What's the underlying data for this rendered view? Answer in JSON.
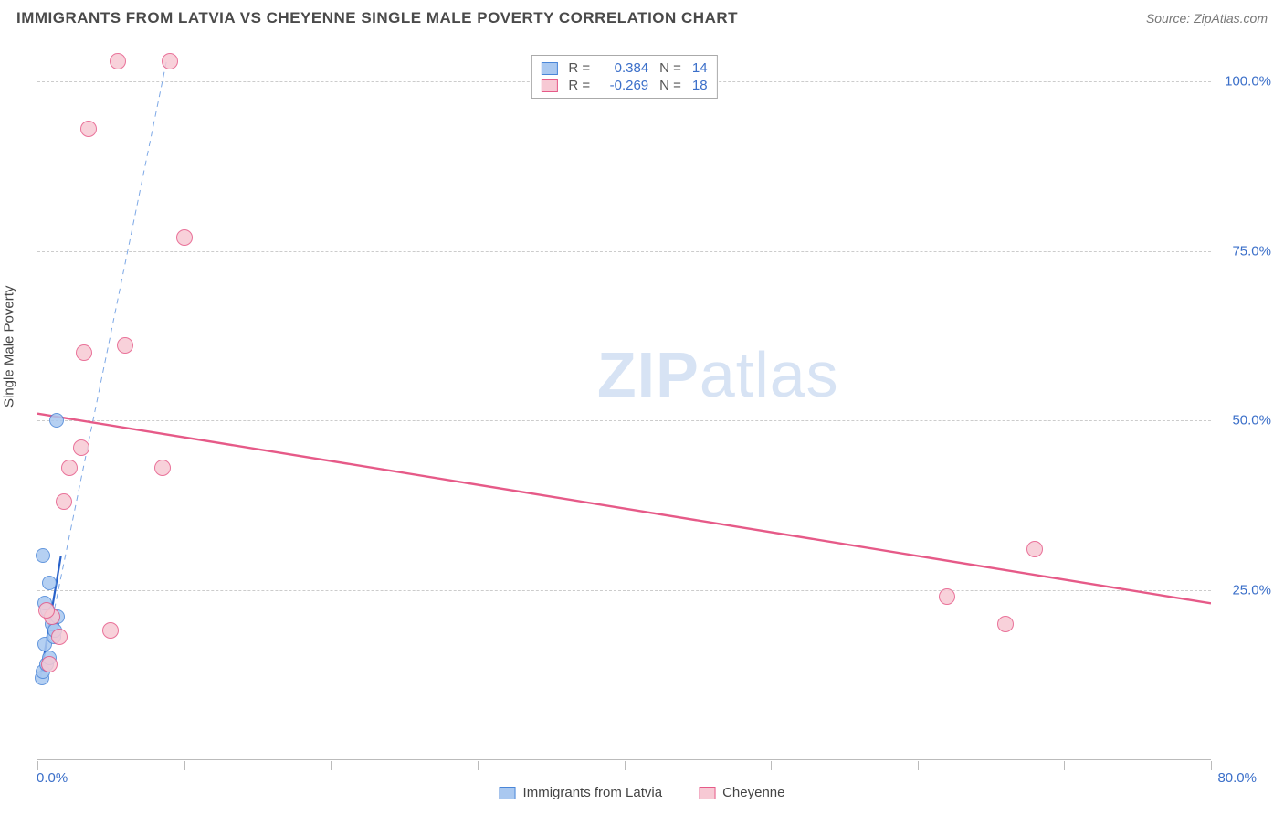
{
  "header": {
    "title": "IMMIGRANTS FROM LATVIA VS CHEYENNE SINGLE MALE POVERTY CORRELATION CHART",
    "source": "Source: ZipAtlas.com"
  },
  "watermark": {
    "bold": "ZIP",
    "light": "atlas"
  },
  "chart": {
    "type": "scatter",
    "ylabel": "Single Male Poverty",
    "background_color": "#ffffff",
    "grid_color": "#cccccc",
    "axis_color": "#bbbbbb",
    "xlim": [
      0,
      80
    ],
    "ylim": [
      0,
      105
    ],
    "xtick_positions": [
      0,
      10,
      20,
      30,
      40,
      50,
      60,
      70,
      80
    ],
    "xtick_labels": {
      "0": "0.0%",
      "80": "80.0%"
    },
    "ytick_positions": [
      25,
      50,
      75,
      100
    ],
    "ytick_labels": {
      "25": "25.0%",
      "50": "50.0%",
      "75": "75.0%",
      "100": "100.0%"
    },
    "series": [
      {
        "id": "latvia",
        "label": "Immigrants from Latvia",
        "color_fill": "#a9c8f0",
        "color_stroke": "#4a86d8",
        "marker_radius": 8,
        "R": "0.384",
        "N": "14",
        "trend": {
          "x1": 0.2,
          "y1": 12,
          "x2": 1.6,
          "y2": 30,
          "dashed": false,
          "width": 2.2,
          "color": "#2a62c9"
        },
        "ext_trend": {
          "x1": 0.2,
          "y1": 12,
          "x2": 8.8,
          "y2": 103,
          "dashed": true,
          "width": 1,
          "color": "#7da8e6"
        },
        "points": [
          {
            "x": 0.3,
            "y": 12
          },
          {
            "x": 0.4,
            "y": 13
          },
          {
            "x": 0.6,
            "y": 14
          },
          {
            "x": 0.8,
            "y": 15
          },
          {
            "x": 0.5,
            "y": 17
          },
          {
            "x": 1.1,
            "y": 18
          },
          {
            "x": 1.0,
            "y": 20
          },
          {
            "x": 1.4,
            "y": 21
          },
          {
            "x": 0.7,
            "y": 22
          },
          {
            "x": 0.5,
            "y": 23
          },
          {
            "x": 0.8,
            "y": 26
          },
          {
            "x": 0.4,
            "y": 30
          },
          {
            "x": 1.2,
            "y": 19
          },
          {
            "x": 1.3,
            "y": 50
          }
        ]
      },
      {
        "id": "cheyenne",
        "label": "Cheyenne",
        "color_fill": "#f7c9d4",
        "color_stroke": "#e65a88",
        "marker_radius": 9,
        "R": "-0.269",
        "N": "18",
        "trend": {
          "x1": 0,
          "y1": 51,
          "x2": 80,
          "y2": 23,
          "dashed": false,
          "width": 2.4,
          "color": "#e65a88"
        },
        "points": [
          {
            "x": 0.8,
            "y": 14
          },
          {
            "x": 1.5,
            "y": 18
          },
          {
            "x": 5.0,
            "y": 19
          },
          {
            "x": 1.0,
            "y": 21
          },
          {
            "x": 0.6,
            "y": 22
          },
          {
            "x": 1.8,
            "y": 38
          },
          {
            "x": 2.2,
            "y": 43
          },
          {
            "x": 8.5,
            "y": 43
          },
          {
            "x": 3.0,
            "y": 46
          },
          {
            "x": 3.2,
            "y": 60
          },
          {
            "x": 6.0,
            "y": 61
          },
          {
            "x": 10.0,
            "y": 77
          },
          {
            "x": 3.5,
            "y": 93
          },
          {
            "x": 5.5,
            "y": 103
          },
          {
            "x": 9.0,
            "y": 103
          },
          {
            "x": 62,
            "y": 24
          },
          {
            "x": 66,
            "y": 20
          },
          {
            "x": 68,
            "y": 31
          }
        ]
      }
    ],
    "legend_top": {
      "r_label": "R =",
      "n_label": "N ="
    },
    "tick_label_color": "#3b6fc9",
    "label_fontsize": 15,
    "title_fontsize": 17
  }
}
